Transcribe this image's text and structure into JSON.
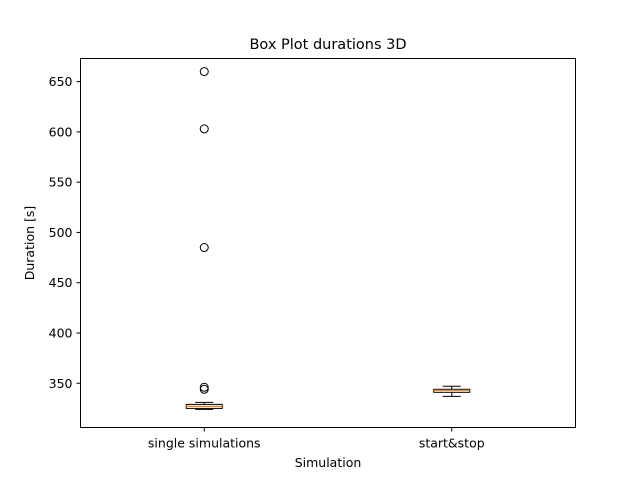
{
  "chart_data": {
    "type": "box",
    "title": "Box Plot durations 3D",
    "xlabel": "Simulation",
    "ylabel": "Duration [s]",
    "categories": [
      "single simulations",
      "start&stop"
    ],
    "ylim": [
      306,
      673
    ],
    "yticks": [
      350,
      400,
      450,
      500,
      550,
      600,
      650
    ],
    "grid": false,
    "series": [
      {
        "category": "single simulations",
        "whisker_low": 324,
        "q1": 325,
        "median": 327,
        "q3": 329,
        "whisker_high": 331,
        "outliers": [
          344,
          346,
          485,
          603,
          660
        ]
      },
      {
        "category": "start&stop",
        "whisker_low": 337,
        "q1": 341,
        "median": 343,
        "q3": 344,
        "whisker_high": 347,
        "outliers": []
      }
    ],
    "colors": {
      "box": "#000000",
      "median": "#ff7f0e",
      "outlier": "#000000"
    }
  }
}
